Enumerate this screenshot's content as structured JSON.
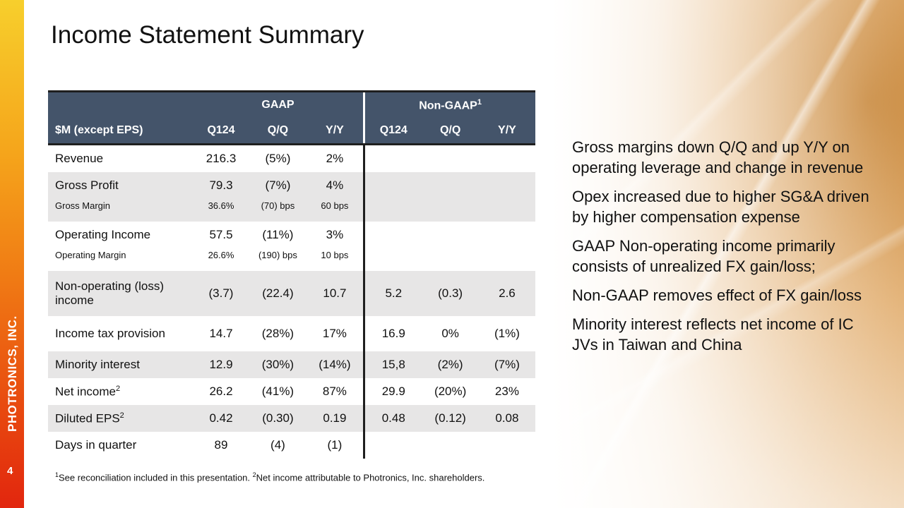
{
  "brand": "PHOTRONICS, INC.",
  "page_number": "4",
  "title": "Income Statement Summary",
  "table": {
    "group_gaap": "GAAP",
    "group_nongaap": "Non-GAAP",
    "group_nongaap_sup": "1",
    "row_header": "$M (except EPS)",
    "columns": [
      "Q124",
      "Q/Q",
      "Y/Y",
      "Q124",
      "Q/Q",
      "Y/Y"
    ],
    "rows": [
      {
        "label": "Revenue",
        "cells": [
          "216.3",
          "(5%)",
          "2%",
          "",
          "",
          ""
        ]
      },
      {
        "label": "Gross Profit",
        "cells": [
          "79.3",
          "(7%)",
          "4%",
          "",
          "",
          ""
        ]
      },
      {
        "label": "Gross Margin",
        "cells": [
          "36.6%",
          "(70) bps",
          "60 bps",
          "",
          "",
          ""
        ]
      },
      {
        "label": "Operating Income",
        "cells": [
          "57.5",
          "(11%)",
          "3%",
          "",
          "",
          ""
        ]
      },
      {
        "label": "Operating Margin",
        "cells": [
          "26.6%",
          "(190) bps",
          "10 bps",
          "",
          "",
          ""
        ]
      },
      {
        "label": "Non-operating (loss) income",
        "cells": [
          "(3.7)",
          "(22.4)",
          "10.7",
          "5.2",
          "(0.3)",
          "2.6"
        ]
      },
      {
        "label": "Income tax provision",
        "cells": [
          "14.7",
          "(28%)",
          "17%",
          "16.9",
          "0%",
          "(1%)"
        ]
      },
      {
        "label": "Minority interest",
        "cells": [
          "12.9",
          "(30%)",
          "(14%)",
          "15,8",
          "(2%)",
          "(7%)"
        ]
      },
      {
        "label": "Net income",
        "sup": "2",
        "cells": [
          "26.2",
          "(41%)",
          "87%",
          "29.9",
          "(20%)",
          "23%"
        ]
      },
      {
        "label": "Diluted EPS",
        "sup": "2",
        "cells": [
          "0.42",
          "(0.30)",
          "0.19",
          "0.48",
          "(0.12)",
          "0.08"
        ]
      },
      {
        "label": "Days in quarter",
        "cells": [
          "89",
          "(4)",
          "(1)",
          "",
          "",
          ""
        ]
      }
    ]
  },
  "footnote": {
    "sup1": "1",
    "text1": "See reconciliation included in this presentation. ",
    "sup2": "2",
    "text2": "Net income attributable to Photronics, Inc. shareholders."
  },
  "bullets": [
    "Gross margins down Q/Q and up Y/Y on operating leverage and change in revenue",
    "Opex increased due to higher SG&A driven by higher compensation expense",
    "GAAP Non-operating income primarily consists of unrealized FX gain/loss;",
    "Non-GAAP removes effect of FX gain/loss",
    "Minority interest reflects net income of IC JVs in Taiwan and China"
  ]
}
